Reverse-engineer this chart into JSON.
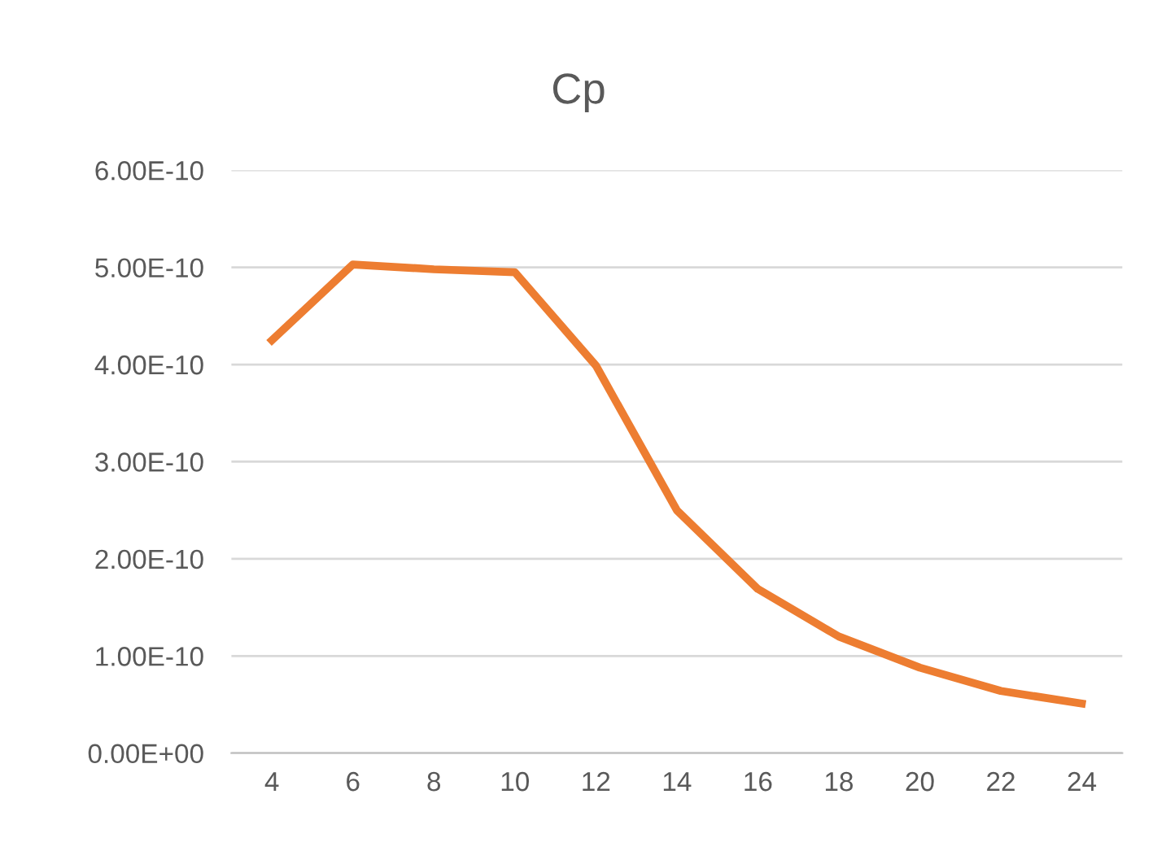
{
  "chart_data": {
    "type": "line",
    "title": "Cp",
    "categories": [
      "4",
      "6",
      "8",
      "10",
      "12",
      "14",
      "16",
      "18",
      "20",
      "22",
      "24"
    ],
    "series": [
      {
        "color": "#ed7d31",
        "values": [
          4.25e-10,
          5.03e-10,
          4.98e-10,
          4.95e-10,
          3.99e-10,
          2.5e-10,
          1.69e-10,
          1.2e-10,
          8.8e-11,
          6.4e-11,
          5.1e-11
        ]
      }
    ],
    "ylim": [
      0,
      6e-10
    ],
    "yticks": [
      {
        "value": 0,
        "label": "0.00E+00"
      },
      {
        "value": 1e-10,
        "label": "1.00E-10"
      },
      {
        "value": 2e-10,
        "label": "2.00E-10"
      },
      {
        "value": 3e-10,
        "label": "3.00E-10"
      },
      {
        "value": 4e-10,
        "label": "4.00E-10"
      },
      {
        "value": 5e-10,
        "label": "5.00E-10"
      },
      {
        "value": 6e-10,
        "label": "6.00E-10"
      }
    ],
    "grid": "y",
    "legend": false,
    "marker": "none",
    "line_style": "solid"
  }
}
